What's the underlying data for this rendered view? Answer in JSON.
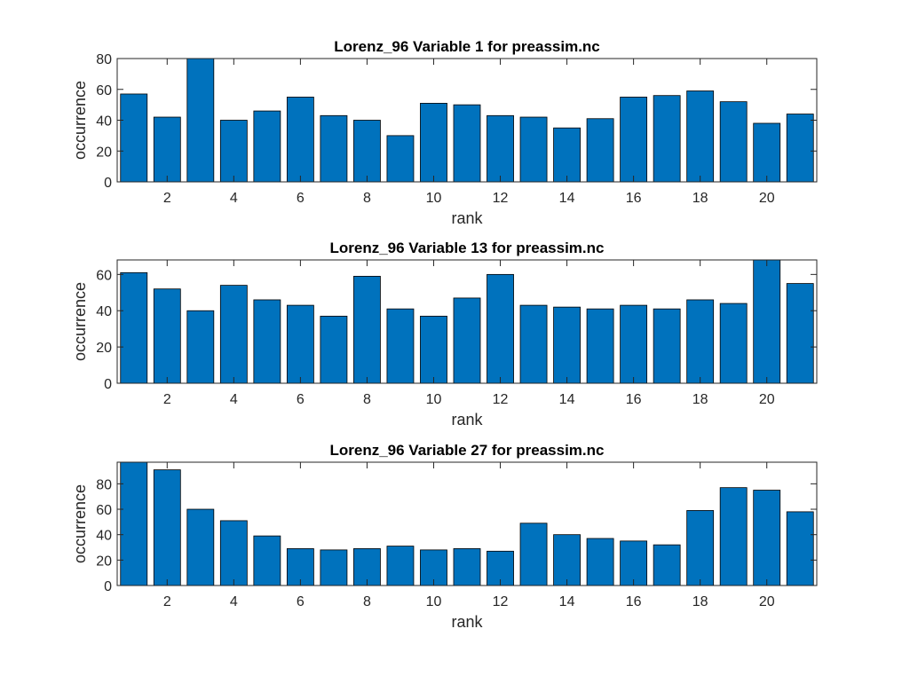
{
  "chart_data": [
    {
      "type": "bar",
      "title": "Lorenz_96 Variable 1 for preassim.nc",
      "xlabel": "rank",
      "ylabel": "occurrence",
      "categories": [
        1,
        2,
        3,
        4,
        5,
        6,
        7,
        8,
        9,
        10,
        11,
        12,
        13,
        14,
        15,
        16,
        17,
        18,
        19,
        20,
        21
      ],
      "xticks": [
        2,
        4,
        6,
        8,
        10,
        12,
        14,
        16,
        18,
        20
      ],
      "yticks": [
        0,
        20,
        40,
        60,
        80
      ],
      "ylim": [
        0,
        80
      ],
      "xlim": [
        0.5,
        21.5
      ],
      "values": [
        57,
        42,
        81,
        40,
        46,
        55,
        43,
        40,
        30,
        51,
        50,
        43,
        42,
        35,
        41,
        55,
        56,
        59,
        52,
        38,
        44
      ],
      "bar_color": "#0072BD",
      "grid": false
    },
    {
      "type": "bar",
      "title": "Lorenz_96 Variable 13 for preassim.nc",
      "xlabel": "rank",
      "ylabel": "occurrence",
      "categories": [
        1,
        2,
        3,
        4,
        5,
        6,
        7,
        8,
        9,
        10,
        11,
        12,
        13,
        14,
        15,
        16,
        17,
        18,
        19,
        20,
        21
      ],
      "xticks": [
        2,
        4,
        6,
        8,
        10,
        12,
        14,
        16,
        18,
        20
      ],
      "yticks": [
        0,
        20,
        40,
        60
      ],
      "ylim": [
        0,
        68
      ],
      "xlim": [
        0.5,
        21.5
      ],
      "values": [
        61,
        52,
        40,
        54,
        46,
        43,
        37,
        59,
        41,
        37,
        47,
        60,
        43,
        42,
        41,
        43,
        41,
        46,
        44,
        68,
        55
      ],
      "bar_color": "#0072BD",
      "grid": false
    },
    {
      "type": "bar",
      "title": "Lorenz_96 Variable 27 for preassim.nc",
      "xlabel": "rank",
      "ylabel": "occurrence",
      "categories": [
        1,
        2,
        3,
        4,
        5,
        6,
        7,
        8,
        9,
        10,
        11,
        12,
        13,
        14,
        15,
        16,
        17,
        18,
        19,
        20,
        21
      ],
      "xticks": [
        2,
        4,
        6,
        8,
        10,
        12,
        14,
        16,
        18,
        20
      ],
      "yticks": [
        0,
        20,
        40,
        60,
        80
      ],
      "ylim": [
        0,
        97
      ],
      "xlim": [
        0.5,
        21.5
      ],
      "values": [
        97,
        91,
        60,
        51,
        39,
        29,
        28,
        29,
        31,
        28,
        29,
        27,
        49,
        40,
        37,
        35,
        32,
        59,
        77,
        75,
        58
      ],
      "bar_color": "#0072BD",
      "grid": false
    }
  ]
}
